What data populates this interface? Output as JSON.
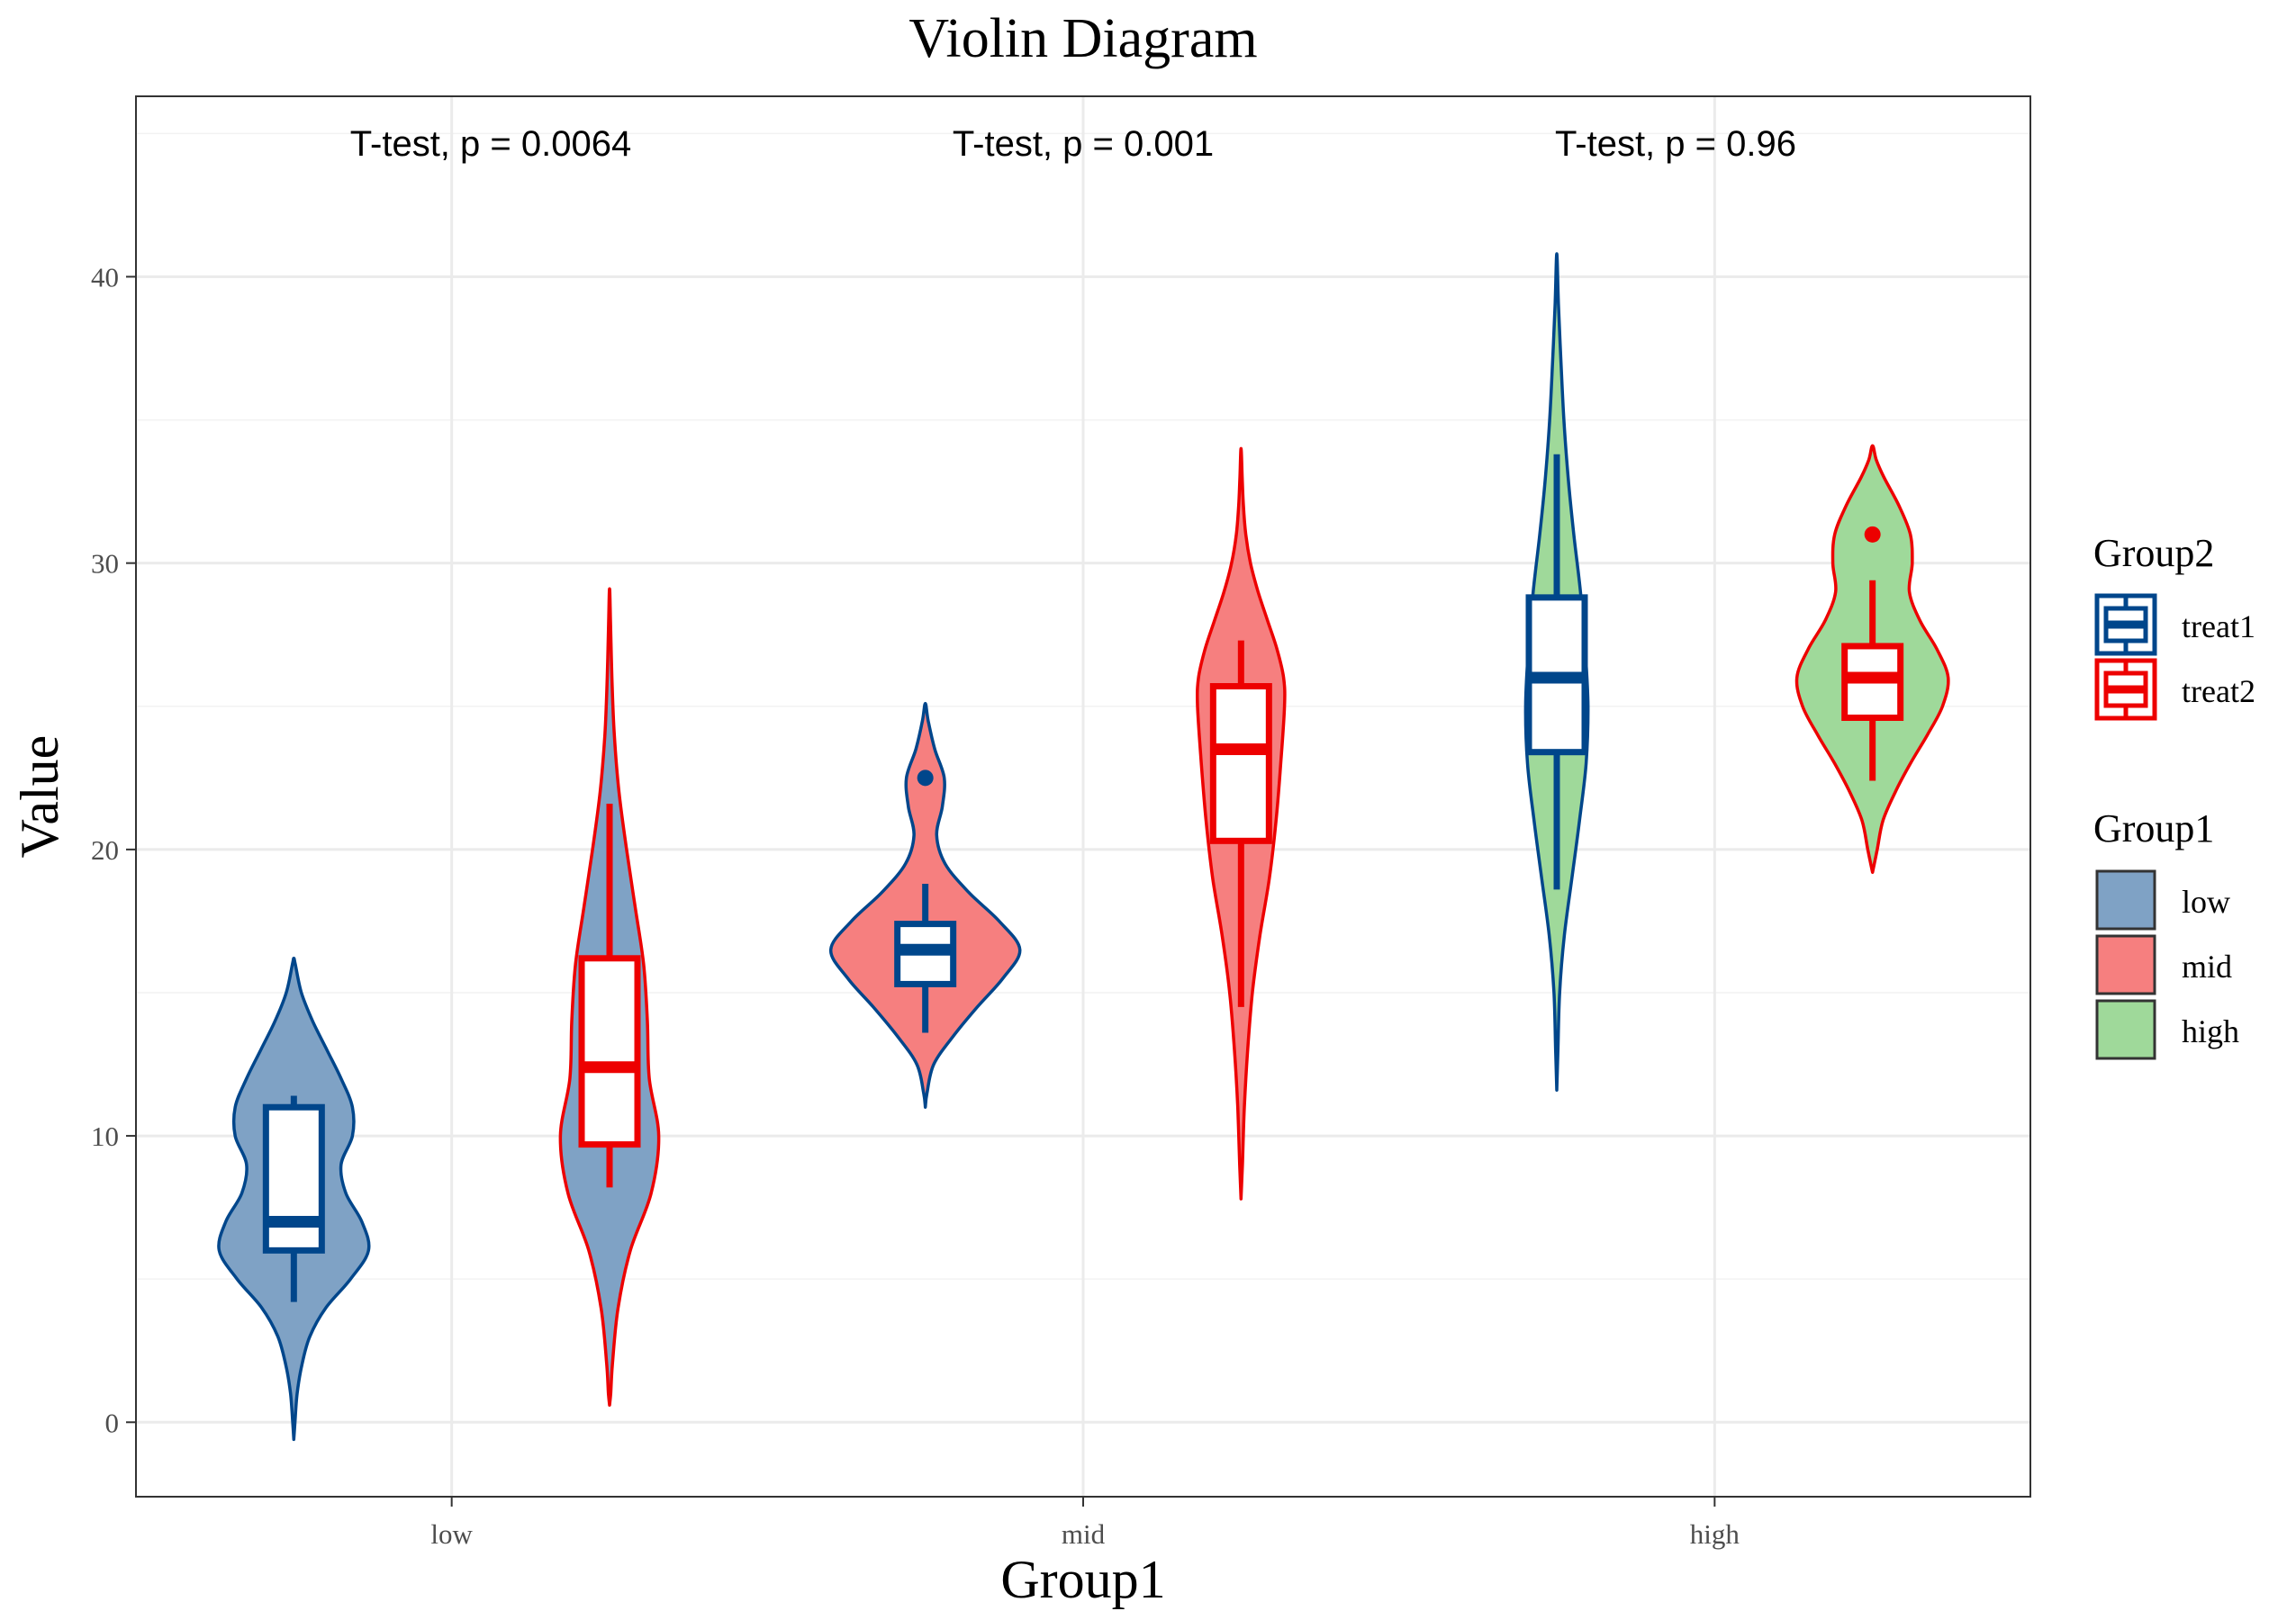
{
  "chart_data": {
    "type": "violin",
    "title": "Violin Diagram",
    "xlabel": "Group1",
    "ylabel": "Value",
    "ylim": [
      -2.6,
      46.3
    ],
    "yticks": [
      0,
      10,
      20,
      30,
      40
    ],
    "ytick_labels": [
      "0",
      "10",
      "20",
      "30",
      "40"
    ],
    "categories": [
      "low",
      "mid",
      "high"
    ],
    "series_order": [
      "treat1",
      "treat2"
    ],
    "annotations": [
      "T-test, p = 0.0064",
      "T-test, p = 0.001",
      "T-test, p = 0.96"
    ],
    "legend_group2": {
      "title": "Group2",
      "items": [
        {
          "label": "treat1",
          "color": "#00468B"
        },
        {
          "label": "treat2",
          "color": "#ED0000"
        }
      ]
    },
    "legend_group1": {
      "title": "Group1",
      "items": [
        {
          "label": "low",
          "fill": "#7FA2C5"
        },
        {
          "label": "mid",
          "fill": "#F67F7F"
        },
        {
          "label": "high",
          "fill": "#9FD99A"
        }
      ]
    },
    "violins": [
      {
        "group": "low",
        "series": "treat1",
        "fill": "#7FA2C5",
        "line": "#00468B",
        "density": [
          [
            -0.6,
            0
          ],
          [
            0,
            0.012
          ],
          [
            1,
            0.035
          ],
          [
            2,
            0.085
          ],
          [
            3,
            0.17
          ],
          [
            4,
            0.34
          ],
          [
            5,
            0.6
          ],
          [
            6,
            0.79
          ],
          [
            7,
            0.72
          ],
          [
            8,
            0.55
          ],
          [
            9,
            0.5
          ],
          [
            10,
            0.62
          ],
          [
            11,
            0.62
          ],
          [
            12,
            0.5
          ],
          [
            13,
            0.35
          ],
          [
            14,
            0.2
          ],
          [
            15,
            0.08
          ],
          [
            16,
            0.015
          ],
          [
            16.2,
            0
          ]
        ],
        "box": {
          "q1": 6.0,
          "median": 7.0,
          "q3": 11.0,
          "wlo": 4.2,
          "whi": 11.4
        },
        "outliers": []
      },
      {
        "group": "low",
        "series": "treat2",
        "fill": "#7FA2C5",
        "line": "#ED0000",
        "density": [
          [
            0.6,
            0
          ],
          [
            1,
            0.012
          ],
          [
            2,
            0.03
          ],
          [
            4,
            0.09
          ],
          [
            6,
            0.22
          ],
          [
            8,
            0.44
          ],
          [
            10,
            0.52
          ],
          [
            12,
            0.42
          ],
          [
            14,
            0.4
          ],
          [
            16,
            0.36
          ],
          [
            18,
            0.27
          ],
          [
            20,
            0.18
          ],
          [
            22,
            0.1
          ],
          [
            24,
            0.05
          ],
          [
            26,
            0.025
          ],
          [
            28,
            0.01
          ],
          [
            29.1,
            0
          ]
        ],
        "box": {
          "q1": 9.7,
          "median": 12.4,
          "q3": 16.2,
          "wlo": 8.2,
          "whi": 21.6
        },
        "outliers": []
      },
      {
        "group": "mid",
        "series": "treat1",
        "fill": "#F67F7F",
        "line": "#00468B",
        "density": [
          [
            11.0,
            0
          ],
          [
            11.5,
            0.018
          ],
          [
            12.5,
            0.09
          ],
          [
            13.5,
            0.3
          ],
          [
            14.5,
            0.55
          ],
          [
            15.5,
            0.82
          ],
          [
            16.5,
            1.0
          ],
          [
            17.5,
            0.78
          ],
          [
            18.5,
            0.46
          ],
          [
            19.5,
            0.21
          ],
          [
            20.5,
            0.12
          ],
          [
            21.5,
            0.18
          ],
          [
            22.5,
            0.2
          ],
          [
            23.5,
            0.1
          ],
          [
            24.5,
            0.03
          ],
          [
            25.1,
            0
          ]
        ],
        "box": {
          "q1": 15.3,
          "median": 16.5,
          "q3": 17.4,
          "wlo": 13.6,
          "whi": 18.8
        },
        "outliers": [
          22.5
        ]
      },
      {
        "group": "mid",
        "series": "treat2",
        "fill": "#F67F7F",
        "line": "#ED0000",
        "density": [
          [
            7.8,
            0
          ],
          [
            9,
            0.015
          ],
          [
            11,
            0.035
          ],
          [
            13,
            0.07
          ],
          [
            15,
            0.12
          ],
          [
            17,
            0.2
          ],
          [
            19,
            0.3
          ],
          [
            21,
            0.37
          ],
          [
            23,
            0.42
          ],
          [
            25,
            0.46
          ],
          [
            26,
            0.45
          ],
          [
            27,
            0.38
          ],
          [
            28,
            0.28
          ],
          [
            29,
            0.18
          ],
          [
            30,
            0.1
          ],
          [
            31,
            0.05
          ],
          [
            32,
            0.025
          ],
          [
            33,
            0.012
          ],
          [
            34,
            0
          ]
        ],
        "box": {
          "q1": 20.3,
          "median": 23.5,
          "q3": 25.7,
          "wlo": 14.5,
          "whi": 27.3
        },
        "outliers": []
      },
      {
        "group": "high",
        "series": "treat1",
        "fill": "#9FD99A",
        "line": "#00468B",
        "density": [
          [
            11.6,
            0
          ],
          [
            13,
            0.012
          ],
          [
            15,
            0.03
          ],
          [
            17,
            0.08
          ],
          [
            19,
            0.16
          ],
          [
            21,
            0.24
          ],
          [
            23,
            0.31
          ],
          [
            25,
            0.33
          ],
          [
            27,
            0.3
          ],
          [
            29,
            0.25
          ],
          [
            31,
            0.18
          ],
          [
            33,
            0.12
          ],
          [
            35,
            0.075
          ],
          [
            37,
            0.045
          ],
          [
            39,
            0.018
          ],
          [
            40.8,
            0
          ]
        ],
        "box": {
          "q1": 23.4,
          "median": 26.0,
          "q3": 28.8,
          "wlo": 18.6,
          "whi": 33.8
        },
        "outliers": []
      },
      {
        "group": "high",
        "series": "treat2",
        "fill": "#9FD99A",
        "line": "#ED0000",
        "density": [
          [
            19.2,
            0
          ],
          [
            20,
            0.05
          ],
          [
            21,
            0.11
          ],
          [
            22,
            0.24
          ],
          [
            23,
            0.4
          ],
          [
            24,
            0.58
          ],
          [
            25,
            0.74
          ],
          [
            26,
            0.8
          ],
          [
            27,
            0.68
          ],
          [
            28,
            0.5
          ],
          [
            29,
            0.39
          ],
          [
            30,
            0.42
          ],
          [
            31,
            0.4
          ],
          [
            32,
            0.28
          ],
          [
            33,
            0.12
          ],
          [
            33.6,
            0.04
          ],
          [
            34.1,
            0
          ]
        ],
        "box": {
          "q1": 24.6,
          "median": 26.0,
          "q3": 27.1,
          "wlo": 22.4,
          "whi": 29.4
        },
        "outliers": [
          31.0
        ]
      }
    ]
  }
}
